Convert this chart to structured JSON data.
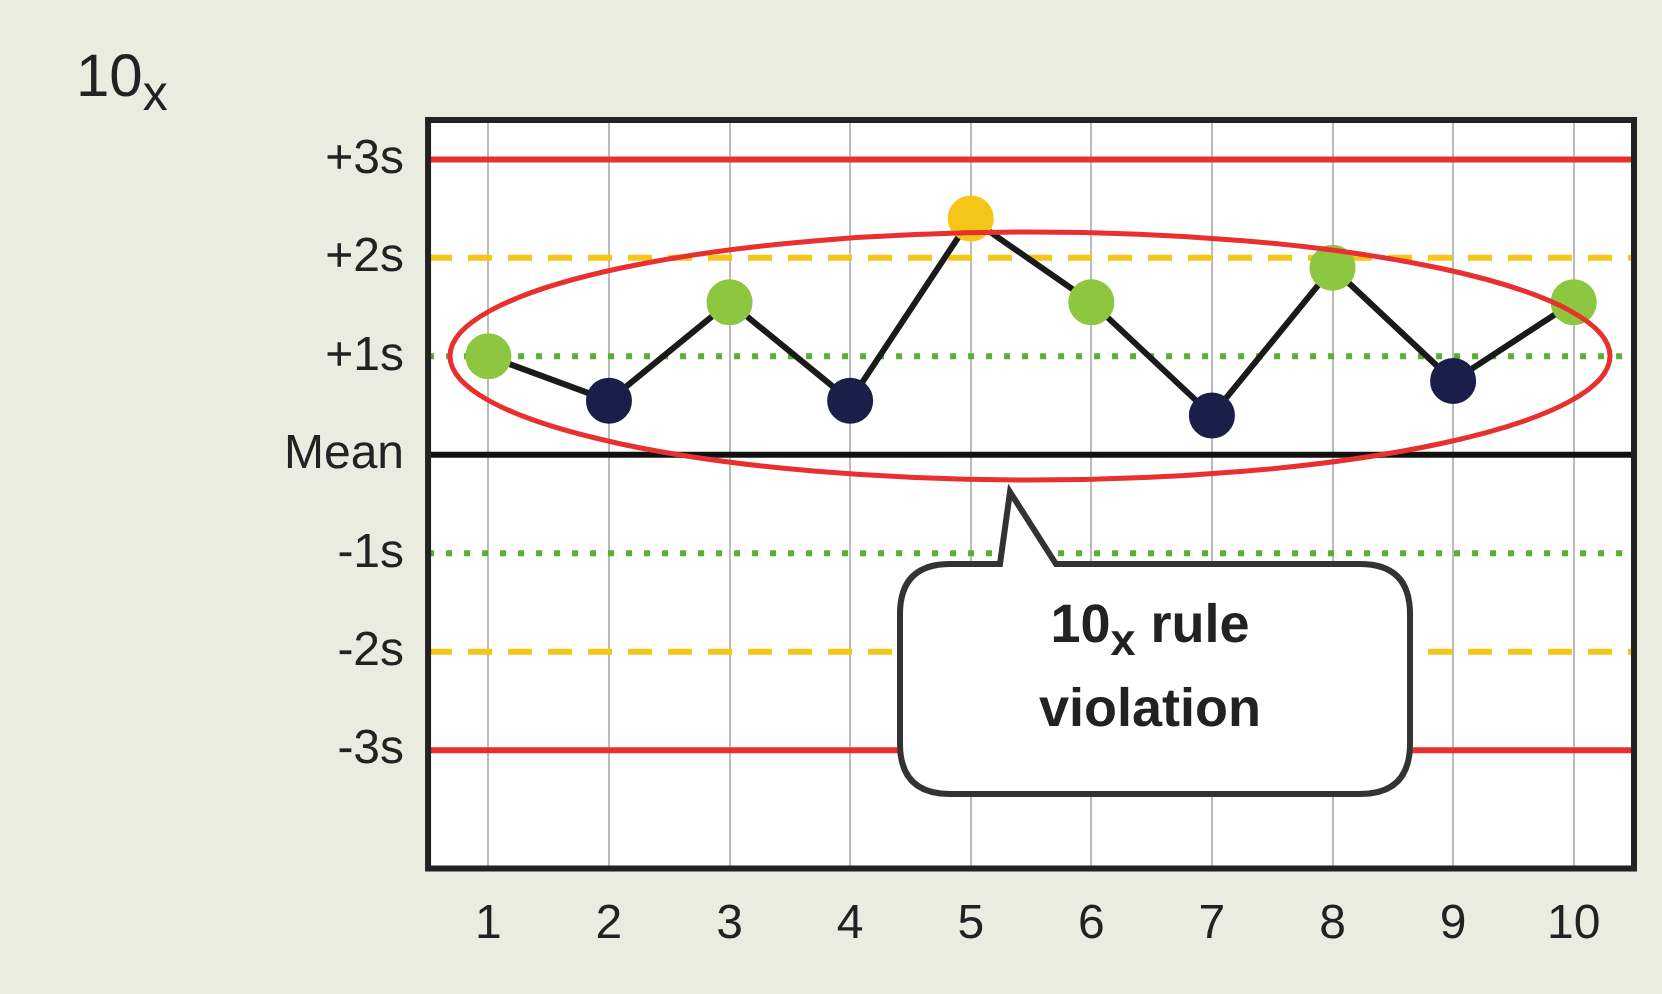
{
  "chart_data": {
    "type": "line",
    "title": "10$_{x}$",
    "categories": [
      "1",
      "2",
      "3",
      "4",
      "5",
      "6",
      "7",
      "8",
      "9",
      "10"
    ],
    "series": [
      {
        "color": "#1a1a1a",
        "colors": [
          "#8dc63f",
          "#1a1f4a",
          "#8dc63f",
          "#1a1f4a",
          "#f5c518",
          "#8dc63f",
          "#1a1f4a",
          "#8dc63f",
          "#1a1f4a",
          "#8dc63f"
        ],
        "values": [
          1.0,
          0.55,
          1.55,
          0.55,
          2.4,
          1.55,
          0.4,
          1.9,
          0.75,
          1.55
        ]
      }
    ],
    "ylim": [
      -4.2,
      3.4
    ],
    "yticks": [
      {
        "value": 3,
        "label": "+3s"
      },
      {
        "value": 2,
        "label": "+2s"
      },
      {
        "value": 1,
        "label": "+1s"
      },
      {
        "value": 0,
        "label": "Mean"
      },
      {
        "value": -1,
        "label": "-1s"
      },
      {
        "value": -2,
        "label": "-2s"
      },
      {
        "value": -3,
        "label": "-3s"
      }
    ],
    "grid": "x",
    "marker": "circle",
    "line_style": "solid",
    "legend": false,
    "ref_lines": [
      {
        "axis": "y",
        "value": 3,
        "color": "#e8302e",
        "line_style": "solid"
      },
      {
        "axis": "y",
        "value": 2,
        "color": "#f5c518",
        "line_style": "dashed"
      },
      {
        "axis": "y",
        "value": 1,
        "color": "#55b033",
        "line_style": "dotted"
      },
      {
        "axis": "y",
        "value": 0,
        "color": "#111111",
        "line_style": "solid"
      },
      {
        "axis": "y",
        "value": -1,
        "color": "#55b033",
        "line_style": "dotted"
      },
      {
        "axis": "y",
        "value": -2,
        "color": "#f5c518",
        "line_style": "dashed"
      },
      {
        "axis": "y",
        "value": -3,
        "color": "#e8302e",
        "line_style": "solid"
      }
    ],
    "annotations": [
      "10$_{x}$ rule violation"
    ]
  }
}
